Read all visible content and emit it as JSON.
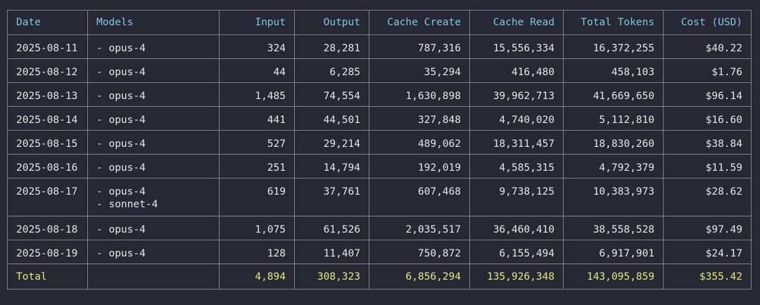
{
  "columns": [
    "Date",
    "Models",
    "Input",
    "Output",
    "Cache Create",
    "Cache Read",
    "Total Tokens",
    "Cost (USD)"
  ],
  "rows": [
    {
      "date": "2025-08-11",
      "models": [
        "- opus-4"
      ],
      "input": "324",
      "output": "28,281",
      "cache_create": "787,316",
      "cache_read": "15,556,334",
      "total": "16,372,255",
      "cost": "$40.22"
    },
    {
      "date": "2025-08-12",
      "models": [
        "- opus-4"
      ],
      "input": "44",
      "output": "6,285",
      "cache_create": "35,294",
      "cache_read": "416,480",
      "total": "458,103",
      "cost": "$1.76"
    },
    {
      "date": "2025-08-13",
      "models": [
        "- opus-4"
      ],
      "input": "1,485",
      "output": "74,554",
      "cache_create": "1,630,898",
      "cache_read": "39,962,713",
      "total": "41,669,650",
      "cost": "$96.14"
    },
    {
      "date": "2025-08-14",
      "models": [
        "- opus-4"
      ],
      "input": "441",
      "output": "44,501",
      "cache_create": "327,848",
      "cache_read": "4,740,020",
      "total": "5,112,810",
      "cost": "$16.60"
    },
    {
      "date": "2025-08-15",
      "models": [
        "- opus-4"
      ],
      "input": "527",
      "output": "29,214",
      "cache_create": "489,062",
      "cache_read": "18,311,457",
      "total": "18,830,260",
      "cost": "$38.84"
    },
    {
      "date": "2025-08-16",
      "models": [
        "- opus-4"
      ],
      "input": "251",
      "output": "14,794",
      "cache_create": "192,019",
      "cache_read": "4,585,315",
      "total": "4,792,379",
      "cost": "$11.59"
    },
    {
      "date": "2025-08-17",
      "models": [
        "- opus-4",
        "- sonnet-4"
      ],
      "input": "619",
      "output": "37,761",
      "cache_create": "607,468",
      "cache_read": "9,738,125",
      "total": "10,383,973",
      "cost": "$28.62"
    },
    {
      "date": "2025-08-18",
      "models": [
        "- opus-4"
      ],
      "input": "1,075",
      "output": "61,526",
      "cache_create": "2,035,517",
      "cache_read": "36,460,410",
      "total": "38,558,528",
      "cost": "$97.49"
    },
    {
      "date": "2025-08-19",
      "models": [
        "- opus-4"
      ],
      "input": "128",
      "output": "11,407",
      "cache_create": "750,872",
      "cache_read": "6,155,494",
      "total": "6,917,901",
      "cost": "$24.17"
    }
  ],
  "total": {
    "label": "Total",
    "models": "",
    "input": "4,894",
    "output": "308,323",
    "cache_create": "6,856,294",
    "cache_read": "135,926,348",
    "total": "143,095,859",
    "cost": "$355.42"
  },
  "colors": {
    "background": "#262833",
    "header": "#7fc7e3",
    "total": "#e3ea7b",
    "border": "#7e818c",
    "text": "#e6e6e6"
  }
}
